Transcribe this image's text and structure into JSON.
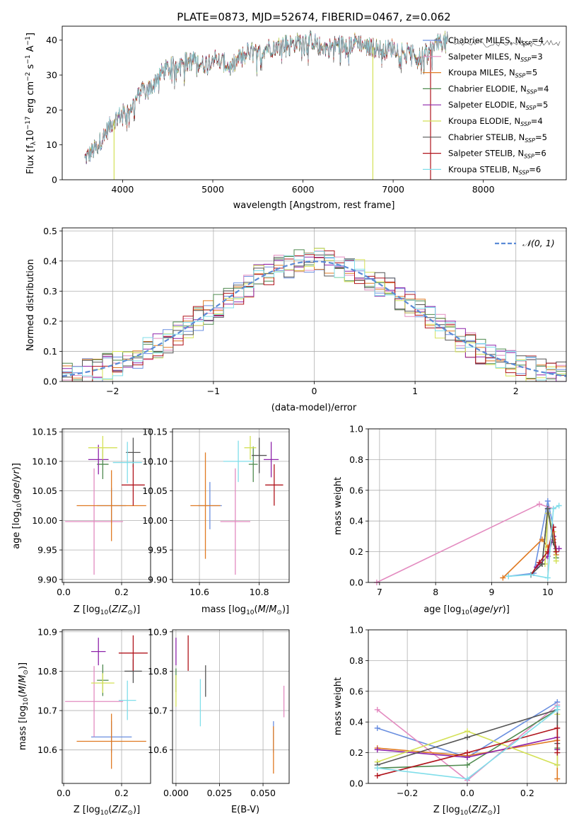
{
  "figure": {
    "title": "PLATE=0873, MJD=52674, FIBERID=0467, z=0.062",
    "models": [
      {
        "name": "Chabrier MILES",
        "nssp": "4",
        "color": "#6a8fe0"
      },
      {
        "name": "Salpeter MILES",
        "nssp": "3",
        "color": "#e38bc0"
      },
      {
        "name": "Kroupa MILES",
        "nssp": "5",
        "color": "#e07a22"
      },
      {
        "name": "Chabrier ELODIE",
        "nssp": "4",
        "color": "#4f8a4f"
      },
      {
        "name": "Salpeter ELODIE",
        "nssp": "5",
        "color": "#8e24aa"
      },
      {
        "name": "Kroupa ELODIE",
        "nssp": "4",
        "color": "#d4e157"
      },
      {
        "name": "Chabrier STELIB",
        "nssp": "5",
        "color": "#555555"
      },
      {
        "name": "Salpeter STELIB",
        "nssp": "6",
        "color": "#b0141c"
      },
      {
        "name": "Kroupa STELIB",
        "nssp": "6",
        "color": "#80deea"
      }
    ],
    "spectrum_color": "#444444",
    "normal_color": "#5b8bd6"
  },
  "chart_data": [
    {
      "id": "spectrum",
      "type": "line",
      "xlabel": "wavelength [Angstrom, rest frame]",
      "ylabel": "Flux [f_λ 10^-17 erg cm^-2 s^-1 A^-1]",
      "xlim": [
        3330,
        8920
      ],
      "ylim": [
        0,
        44
      ],
      "xticks": [
        4000,
        5000,
        6000,
        7000,
        8000
      ],
      "yticks": [
        0,
        10,
        20,
        30,
        40
      ],
      "x": [
        3580,
        3700,
        3800,
        3900,
        4000,
        4100,
        4200,
        4300,
        4400,
        4500,
        4600,
        4700,
        4800,
        4900,
        5000,
        5100,
        5200,
        5300,
        5400,
        5500,
        5600,
        5700,
        5800,
        5900,
        6000,
        6100,
        6200,
        6300,
        6400,
        6500,
        6600,
        6700,
        6800,
        6900,
        7000,
        7100,
        7200,
        7300,
        7400,
        7500,
        7600,
        7650
      ],
      "y": [
        6,
        9,
        13,
        17,
        19,
        21,
        25,
        26,
        30,
        32,
        33,
        34,
        34,
        33,
        35,
        34,
        32,
        35,
        37,
        36,
        38,
        38,
        39,
        39,
        40,
        40,
        38,
        38,
        39,
        38,
        40,
        38,
        38,
        37,
        38,
        37,
        36,
        35,
        37,
        39,
        40,
        41
      ],
      "notes": "model fits overlap the observed spectrum; sky/telluric artefacts near 6780 and 7420 A"
    },
    {
      "id": "residuals",
      "type": "histogram",
      "xlabel": "(data-model)/error",
      "ylabel": "Normed distribution",
      "xlim": [
        -2.5,
        2.5
      ],
      "ylim": [
        0,
        0.51
      ],
      "xticks": [
        -2,
        -1,
        0,
        1,
        2
      ],
      "yticks": [
        0.0,
        0.1,
        0.2,
        0.3,
        0.4,
        0.5
      ],
      "legend": "𝒩(0, 1)",
      "bin_width": 0.1
    },
    {
      "id": "age_vs_Z",
      "type": "errorbar",
      "xlabel": "Z [log10(Z/Z⊙)]",
      "ylabel": "age [log10(age/yr)]",
      "xlim": [
        -0.005,
        0.3
      ],
      "ylim": [
        9.895,
        10.155
      ],
      "xticks": [
        0.0,
        0.2
      ],
      "yticks": [
        9.9,
        9.95,
        10.0,
        10.05,
        10.1,
        10.15
      ],
      "points": [
        {
          "series": 0,
          "x": 0.165,
          "y": 10.025,
          "xerr": 0.05,
          "yerr": 0.03
        },
        {
          "series": 1,
          "x": 0.105,
          "y": 9.998,
          "xerr": 0.1,
          "yerr": 0.09
        },
        {
          "series": 2,
          "x": 0.165,
          "y": 10.025,
          "xerr": 0.12,
          "yerr": 0.06
        },
        {
          "series": 3,
          "x": 0.135,
          "y": 10.095,
          "xerr": 0.02,
          "yerr": 0.025
        },
        {
          "series": 4,
          "x": 0.12,
          "y": 10.103,
          "xerr": 0.035,
          "yerr": 0.025
        },
        {
          "series": 5,
          "x": 0.135,
          "y": 10.123,
          "xerr": 0.05,
          "yerr": 0.02
        },
        {
          "series": 6,
          "x": 0.24,
          "y": 10.115,
          "xerr": 0.025,
          "yerr": 0.025
        },
        {
          "series": 7,
          "x": 0.24,
          "y": 10.06,
          "xerr": 0.04,
          "yerr": 0.035
        },
        {
          "series": 8,
          "x": 0.22,
          "y": 10.098,
          "xerr": 0.05,
          "yerr": 0.035
        }
      ]
    },
    {
      "id": "age_vs_mass",
      "type": "errorbar",
      "xlabel": "mass [log10(M/M⊙)]",
      "ylabel": "",
      "xlim": [
        10.51,
        10.9
      ],
      "ylim": [
        9.895,
        10.155
      ],
      "xticks": [
        10.6,
        10.8
      ],
      "yticks": [
        9.9,
        9.95,
        10.0,
        10.05,
        10.1,
        10.15
      ],
      "points": [
        {
          "series": 0,
          "x": 10.635,
          "y": 10.025,
          "xerr": 0.04,
          "yerr": 0.04
        },
        {
          "series": 1,
          "x": 10.72,
          "y": 9.998,
          "xerr": 0.05,
          "yerr": 0.09
        },
        {
          "series": 2,
          "x": 10.62,
          "y": 10.025,
          "xerr": 0.05,
          "yerr": 0.09
        },
        {
          "series": 3,
          "x": 10.78,
          "y": 10.095,
          "xerr": 0.015,
          "yerr": 0.03
        },
        {
          "series": 4,
          "x": 10.84,
          "y": 10.103,
          "xerr": 0.025,
          "yerr": 0.03
        },
        {
          "series": 5,
          "x": 10.77,
          "y": 10.123,
          "xerr": 0.02,
          "yerr": 0.02
        },
        {
          "series": 6,
          "x": 10.8,
          "y": 10.11,
          "xerr": 0.025,
          "yerr": 0.03
        },
        {
          "series": 7,
          "x": 10.85,
          "y": 10.06,
          "xerr": 0.03,
          "yerr": 0.035
        },
        {
          "series": 8,
          "x": 10.73,
          "y": 10.1,
          "xerr": 0.05,
          "yerr": 0.035
        }
      ]
    },
    {
      "id": "weight_vs_age",
      "type": "line",
      "xlabel": "age [log10(age/yr)]",
      "ylabel": "mass weight",
      "xlim": [
        6.8,
        10.33
      ],
      "ylim": [
        0,
        1.0
      ],
      "xticks": [
        7,
        8,
        9,
        10
      ],
      "yticks": [
        0.0,
        0.2,
        0.4,
        0.6,
        0.8,
        1.0
      ],
      "series": [
        {
          "series": 0,
          "x": [
            9.3,
            9.75,
            10.0,
            10.1
          ],
          "y": [
            0.04,
            0.06,
            0.53,
            0.36
          ]
        },
        {
          "series": 1,
          "x": [
            6.95,
            9.85,
            10.1
          ],
          "y": [
            0.0,
            0.51,
            0.48
          ]
        },
        {
          "series": 2,
          "x": [
            9.2,
            9.9,
            10.0,
            10.1,
            10.15
          ],
          "y": [
            0.03,
            0.28,
            0.23,
            0.28,
            0.18
          ]
        },
        {
          "series": 3,
          "x": [
            9.7,
            9.9,
            10.0,
            10.1,
            10.15
          ],
          "y": [
            0.05,
            0.12,
            0.48,
            0.3,
            0.16
          ]
        },
        {
          "series": 4,
          "x": [
            9.8,
            10.0,
            10.1,
            10.15,
            10.2
          ],
          "y": [
            0.1,
            0.17,
            0.3,
            0.22,
            0.22
          ]
        },
        {
          "series": 5,
          "x": [
            9.95,
            10.0,
            10.1,
            10.15
          ],
          "y": [
            0.12,
            0.45,
            0.33,
            0.14
          ]
        },
        {
          "series": 6,
          "x": [
            9.7,
            9.9,
            10.0,
            10.1,
            10.15
          ],
          "y": [
            0.05,
            0.12,
            0.48,
            0.26,
            0.2
          ]
        },
        {
          "series": 7,
          "x": [
            9.7,
            9.85,
            10.0,
            10.1,
            10.15
          ],
          "y": [
            0.05,
            0.13,
            0.2,
            0.36,
            0.2
          ]
        },
        {
          "series": 8,
          "x": [
            9.3,
            9.7,
            10.0,
            10.1,
            10.2
          ],
          "y": [
            0.04,
            0.05,
            0.03,
            0.48,
            0.5
          ]
        }
      ]
    },
    {
      "id": "mass_vs_Z",
      "type": "errorbar",
      "xlabel": "Z [log10(Z/Z⊙)]",
      "ylabel": "mass [log10(M/M⊙)]",
      "xlim": [
        -0.005,
        0.3
      ],
      "ylim": [
        10.515,
        10.905
      ],
      "xticks": [
        0.0,
        0.2
      ],
      "yticks": [
        10.6,
        10.7,
        10.8,
        10.9
      ],
      "points": [
        {
          "series": 0,
          "x": 0.165,
          "y": 10.633,
          "xerr": 0.07,
          "yerr": 0.04
        },
        {
          "series": 1,
          "x": 0.105,
          "y": 10.723,
          "xerr": 0.1,
          "yerr": 0.09
        },
        {
          "series": 2,
          "x": 0.165,
          "y": 10.622,
          "xerr": 0.12,
          "yerr": 0.07
        },
        {
          "series": 3,
          "x": 0.135,
          "y": 10.777,
          "xerr": 0.02,
          "yerr": 0.04
        },
        {
          "series": 4,
          "x": 0.12,
          "y": 10.85,
          "xerr": 0.025,
          "yerr": 0.035
        },
        {
          "series": 5,
          "x": 0.135,
          "y": 10.77,
          "xerr": 0.04,
          "yerr": 0.025
        },
        {
          "series": 6,
          "x": 0.24,
          "y": 10.8,
          "xerr": 0.03,
          "yerr": 0.03
        },
        {
          "series": 7,
          "x": 0.24,
          "y": 10.846,
          "xerr": 0.05,
          "yerr": 0.045
        },
        {
          "series": 8,
          "x": 0.22,
          "y": 10.726,
          "xerr": 0.03,
          "yerr": 0.05
        }
      ]
    },
    {
      "id": "mass_vs_EBV",
      "type": "errorbar",
      "xlabel": "E(B-V)",
      "ylabel": "",
      "xlim": [
        -0.002,
        0.065
      ],
      "ylim": [
        10.515,
        10.905
      ],
      "xticks": [
        0.0,
        0.025,
        0.05
      ],
      "xticklabels": [
        "0.000",
        "0.025",
        "0.050"
      ],
      "yticks": [
        10.6,
        10.7,
        10.8,
        10.9
      ],
      "points": [
        {
          "series": 0,
          "x": 0.056,
          "y": 10.633,
          "xerr": 0.0,
          "yerr": 0.04
        },
        {
          "series": 1,
          "x": 0.062,
          "y": 10.723,
          "xerr": 0.0,
          "yerr": 0.04
        },
        {
          "series": 2,
          "x": 0.056,
          "y": 10.6,
          "xerr": 0.0,
          "yerr": 0.06
        },
        {
          "series": 3,
          "x": 0.0,
          "y": 10.777,
          "xerr": 0.0,
          "yerr": 0.03
        },
        {
          "series": 4,
          "x": 0.0,
          "y": 10.85,
          "xerr": 0.0,
          "yerr": 0.035
        },
        {
          "series": 5,
          "x": 0.0,
          "y": 10.75,
          "xerr": 0.0,
          "yerr": 0.04
        },
        {
          "series": 6,
          "x": 0.017,
          "y": 10.775,
          "xerr": 0.0,
          "yerr": 0.04
        },
        {
          "series": 7,
          "x": 0.007,
          "y": 10.846,
          "xerr": 0.0,
          "yerr": 0.045
        },
        {
          "series": 8,
          "x": 0.014,
          "y": 10.72,
          "xerr": 0.0,
          "yerr": 0.06
        }
      ]
    },
    {
      "id": "weight_vs_Z",
      "type": "line",
      "xlabel": "Z [log10(Z/Z⊙)]",
      "ylabel": "mass weight",
      "xlim": [
        -0.33,
        0.33
      ],
      "ylim": [
        0,
        1.0
      ],
      "xticks": [
        -0.2,
        0.0,
        0.2
      ],
      "xticklabels": [
        "−0.2",
        "0.0",
        "0.2"
      ],
      "yticks": [
        0.0,
        0.2,
        0.4,
        0.6,
        0.8,
        1.0
      ],
      "series": [
        {
          "series": 0,
          "x": [
            -0.3,
            0.0,
            0.3,
            0.3
          ],
          "y": [
            0.36,
            0.17,
            0.53,
            0.12
          ]
        },
        {
          "series": 1,
          "x": [
            -0.3,
            0.0,
            0.3,
            0.3
          ],
          "y": [
            0.48,
            0.02,
            0.51,
            0.2
          ]
        },
        {
          "series": 2,
          "x": [
            -0.3,
            0.0,
            0.3,
            0.3
          ],
          "y": [
            0.23,
            0.18,
            0.28,
            0.03
          ]
        },
        {
          "series": 3,
          "x": [
            -0.3,
            0.0,
            0.3,
            0.3
          ],
          "y": [
            0.1,
            0.12,
            0.48,
            0.23
          ]
        },
        {
          "series": 4,
          "x": [
            -0.3,
            0.0,
            0.3,
            0.3
          ],
          "y": [
            0.22,
            0.17,
            0.3,
            0.22
          ]
        },
        {
          "series": 5,
          "x": [
            -0.3,
            0.0,
            0.3,
            0.3
          ],
          "y": [
            0.14,
            0.34,
            0.12,
            0.45
          ]
        },
        {
          "series": 6,
          "x": [
            -0.3,
            0.0,
            0.3,
            0.3
          ],
          "y": [
            0.12,
            0.3,
            0.48,
            0.26
          ]
        },
        {
          "series": 7,
          "x": [
            -0.3,
            0.0,
            0.3,
            0.3
          ],
          "y": [
            0.05,
            0.2,
            0.36,
            0.2
          ]
        },
        {
          "series": 8,
          "x": [
            -0.3,
            0.0,
            0.3,
            0.3
          ],
          "y": [
            0.1,
            0.03,
            0.48,
            0.5
          ]
        }
      ]
    }
  ]
}
